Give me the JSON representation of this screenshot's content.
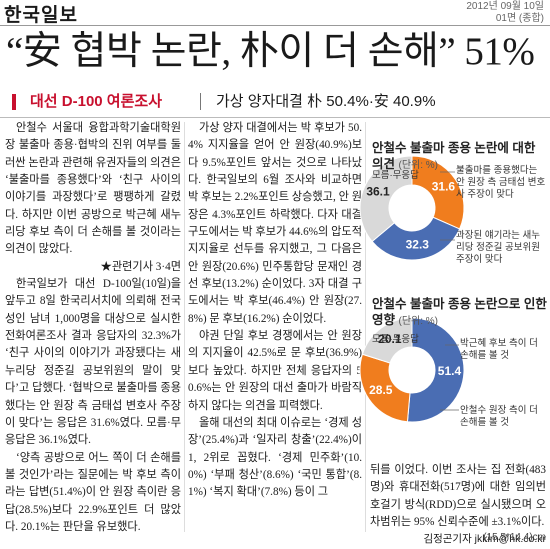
{
  "header": {
    "logo": "한국일보",
    "date": "2012년 09월 10일",
    "page": "01면 (종합)"
  },
  "headline": "“安 협박 논란, 朴이 더 손해” 51%",
  "subheadline": {
    "kicker": "대선 D-100 여론조사",
    "text": "가상 양자대결 朴 50.4%·安 40.9%"
  },
  "column1": {
    "paragraphs": [
      "안철수 서울대 융합과학기술대학원장 불출마 종용·협박의 진위 여부를 둘러싼 논란과 관련해 유권자들의 의견은 ‘불출마를 종용했다’와 ‘친구 사이의 이야기를 과장했다’로 팽팽하게 갈렸다. 하지만 이번 공방으로 박근혜 새누리당 후보 측이 더 손해를 볼 것이라는 의견이 많았다.",
      "한국일보가 대선 D-100일(10일)을 앞두고 8일 한국리서치에 의뢰해 전국 성인 남녀 1,000명을 대상으로 실시한 전화여론조사 결과 응답자의 32.3%가 ‘친구 사이의 이야기가 과장됐다는 새누리당 정준길 공보위원의 말이 맞다’고 답했다. ‘협박으로 불출마를 종용했다는 안 원장 측 금태섭 변호사 주장이 맞다’는 응답은 31.6%였다. 모름·무응답은 36.1%였다.",
      "‘양측 공방으로 어느 쪽이 더 손해를 볼 것인가’라는 질문에는 박 후보 측이라는 답변(51.4%)이 안 원장 측이란 응답(28.5%)보다 22.9%포인트 더 많았다. 20.1%는 판단을 유보했다."
    ],
    "related": "★관련기사 3·4면"
  },
  "column2": {
    "paragraphs": [
      "가상 양자 대결에서는 박 후보가 50.4% 지지율을 얻어 안 원장(40.9%)보다 9.5%포인트 앞서는 것으로 나타났다. 한국일보의 6월 조사와 비교하면 박 후보는 2.2%포인트 상승했고, 안 원장은 4.3%포인트 하락했다. 다자 대결 구도에서는 박 후보가 44.6%의 압도적 지지율로 선두를 유지했고, 그 다음은 안 원장(20.6%) 민주통합당 문재인 경선 후보(13.2%) 순이었다. 3자 대결 구도에서는 박 후보(46.4%) 안 원장(27.8%) 문 후보(16.2%) 순이었다.",
      "야권 단일 후보 경쟁에서는 안 원장의 지지율이 42.5%로 문 후보(36.9%)보다 높았다. 하지만 전체 응답자의 50.6%는 안 원장의 대선 출마가 바람직하지 않다는 의견을 피력했다.",
      "올해 대선의 최대 이슈로는 ‘경제 성장’(25.4%)과 ‘일자리 창출’(22.4%)이 1, 2위로 꼽혔다. ‘경제 민주화’(10.0%) ‘부패 청산’(8.6%) ‘국민 통합’(8.1%) ‘복지 확대’(7.8%) 등이 그"
    ]
  },
  "column3": {
    "text": "뒤를 이었다. 이번 조사는 집 전화(483명)와 휴대전화(517명)에 대한 임의번호걸기 방식(RDD)으로 실시됐으며 오차범위는 95% 신뢰수준에 ±3.1%이다.",
    "byline": "김정곤기자 jkkim@hk.co.kr"
  },
  "footer": "(15.5*14.4)cm",
  "chart_data": [
    {
      "type": "donut",
      "title": "안철수 불출마 종용 논란에 대한 의견",
      "unit": "(단위: %)",
      "categories": [
        "불출마를 종용했다는 안 원장 측 금태섭 변호사 주장이 맞다",
        "과장된 얘기라는 새누리당 정준길 공보위원 주장이 맞다",
        "모름·무응답"
      ],
      "values": [
        31.6,
        32.3,
        36.1
      ],
      "colors": [
        "#f07d1e",
        "#4a6db3",
        "#d9d9d9"
      ]
    },
    {
      "type": "donut",
      "title": "안철수 불출마 종용 논란으로 인한 영향",
      "unit": "(단위: %)",
      "categories": [
        "박근혜 후보 측이 더 손해를 볼 것",
        "안철수 원장 측이 더 손해를 볼 것",
        "모름·무응답"
      ],
      "values": [
        51.4,
        28.5,
        20.1
      ],
      "colors": [
        "#4a6db3",
        "#f07d1e",
        "#d9d9d9"
      ]
    }
  ]
}
